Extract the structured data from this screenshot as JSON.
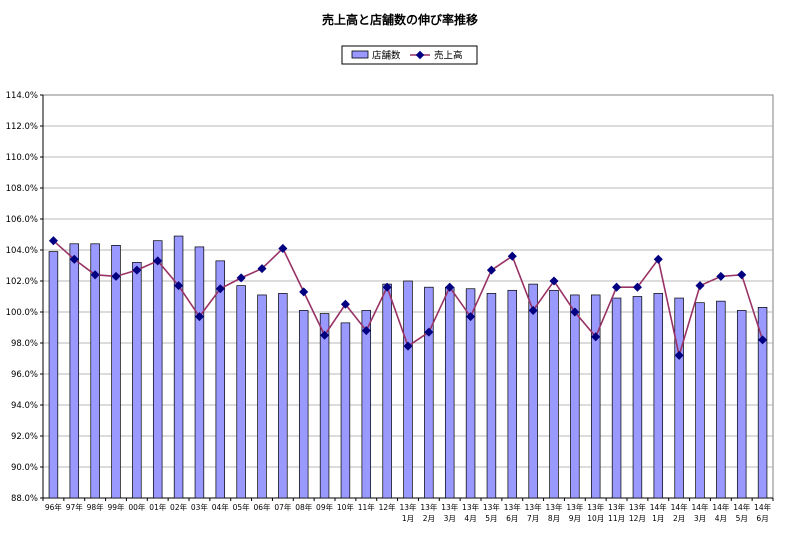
{
  "chart_data": {
    "type": "bar",
    "title": "売上高と店舗数の伸び率推移",
    "xlabel": "",
    "ylabel": "",
    "ylim": [
      88.0,
      114.0
    ],
    "y_tick_step": 2.0,
    "y_ticks": [
      "88.0%",
      "90.0%",
      "92.0%",
      "94.0%",
      "96.0%",
      "98.0%",
      "100.0%",
      "102.0%",
      "104.0%",
      "106.0%",
      "108.0%",
      "110.0%",
      "112.0%",
      "114.0%"
    ],
    "grid": true,
    "legend_position": "top-center",
    "categories": [
      [
        "96年"
      ],
      [
        "97年"
      ],
      [
        "98年"
      ],
      [
        "99年"
      ],
      [
        "00年"
      ],
      [
        "01年"
      ],
      [
        "02年"
      ],
      [
        "03年"
      ],
      [
        "04年"
      ],
      [
        "05年"
      ],
      [
        "06年"
      ],
      [
        "07年"
      ],
      [
        "08年"
      ],
      [
        "09年"
      ],
      [
        "10年"
      ],
      [
        "11年"
      ],
      [
        "12年"
      ],
      [
        "13年",
        "1月"
      ],
      [
        "13年",
        "2月"
      ],
      [
        "13年",
        "3月"
      ],
      [
        "13年",
        "4月"
      ],
      [
        "13年",
        "5月"
      ],
      [
        "13年",
        "6月"
      ],
      [
        "13年",
        "7月"
      ],
      [
        "13年",
        "8月"
      ],
      [
        "13年",
        "9月"
      ],
      [
        "13年",
        "10月"
      ],
      [
        "13年",
        "11月"
      ],
      [
        "13年",
        "12月"
      ],
      [
        "14年",
        "1月"
      ],
      [
        "14年",
        "2月"
      ],
      [
        "14年",
        "3月"
      ],
      [
        "14年",
        "4月"
      ],
      [
        "14年",
        "5月"
      ],
      [
        "14年",
        "6月"
      ]
    ],
    "series": [
      {
        "name": "店舗数",
        "type": "bar",
        "color": "#9999ff",
        "values": [
          103.9,
          104.4,
          104.4,
          104.3,
          103.2,
          104.6,
          104.9,
          104.2,
          103.3,
          101.7,
          101.1,
          101.2,
          100.1,
          99.9,
          99.3,
          100.1,
          101.8,
          102.0,
          101.6,
          101.6,
          101.5,
          101.2,
          101.4,
          101.8,
          101.4,
          101.1,
          101.1,
          100.9,
          101.0,
          101.2,
          100.9,
          100.6,
          100.7,
          100.1,
          100.3
        ]
      },
      {
        "name": "売上高",
        "type": "line",
        "color": "#993366",
        "marker_color": "#000080",
        "values": [
          104.6,
          103.4,
          102.4,
          102.3,
          102.7,
          103.3,
          101.7,
          99.7,
          101.5,
          102.2,
          102.8,
          104.1,
          101.3,
          98.5,
          100.5,
          98.8,
          101.6,
          97.8,
          98.7,
          101.6,
          99.7,
          102.7,
          103.6,
          100.1,
          102.0,
          100.0,
          98.4,
          101.6,
          101.6,
          103.4,
          97.2,
          101.7,
          102.3,
          102.4,
          98.2
        ]
      }
    ]
  }
}
